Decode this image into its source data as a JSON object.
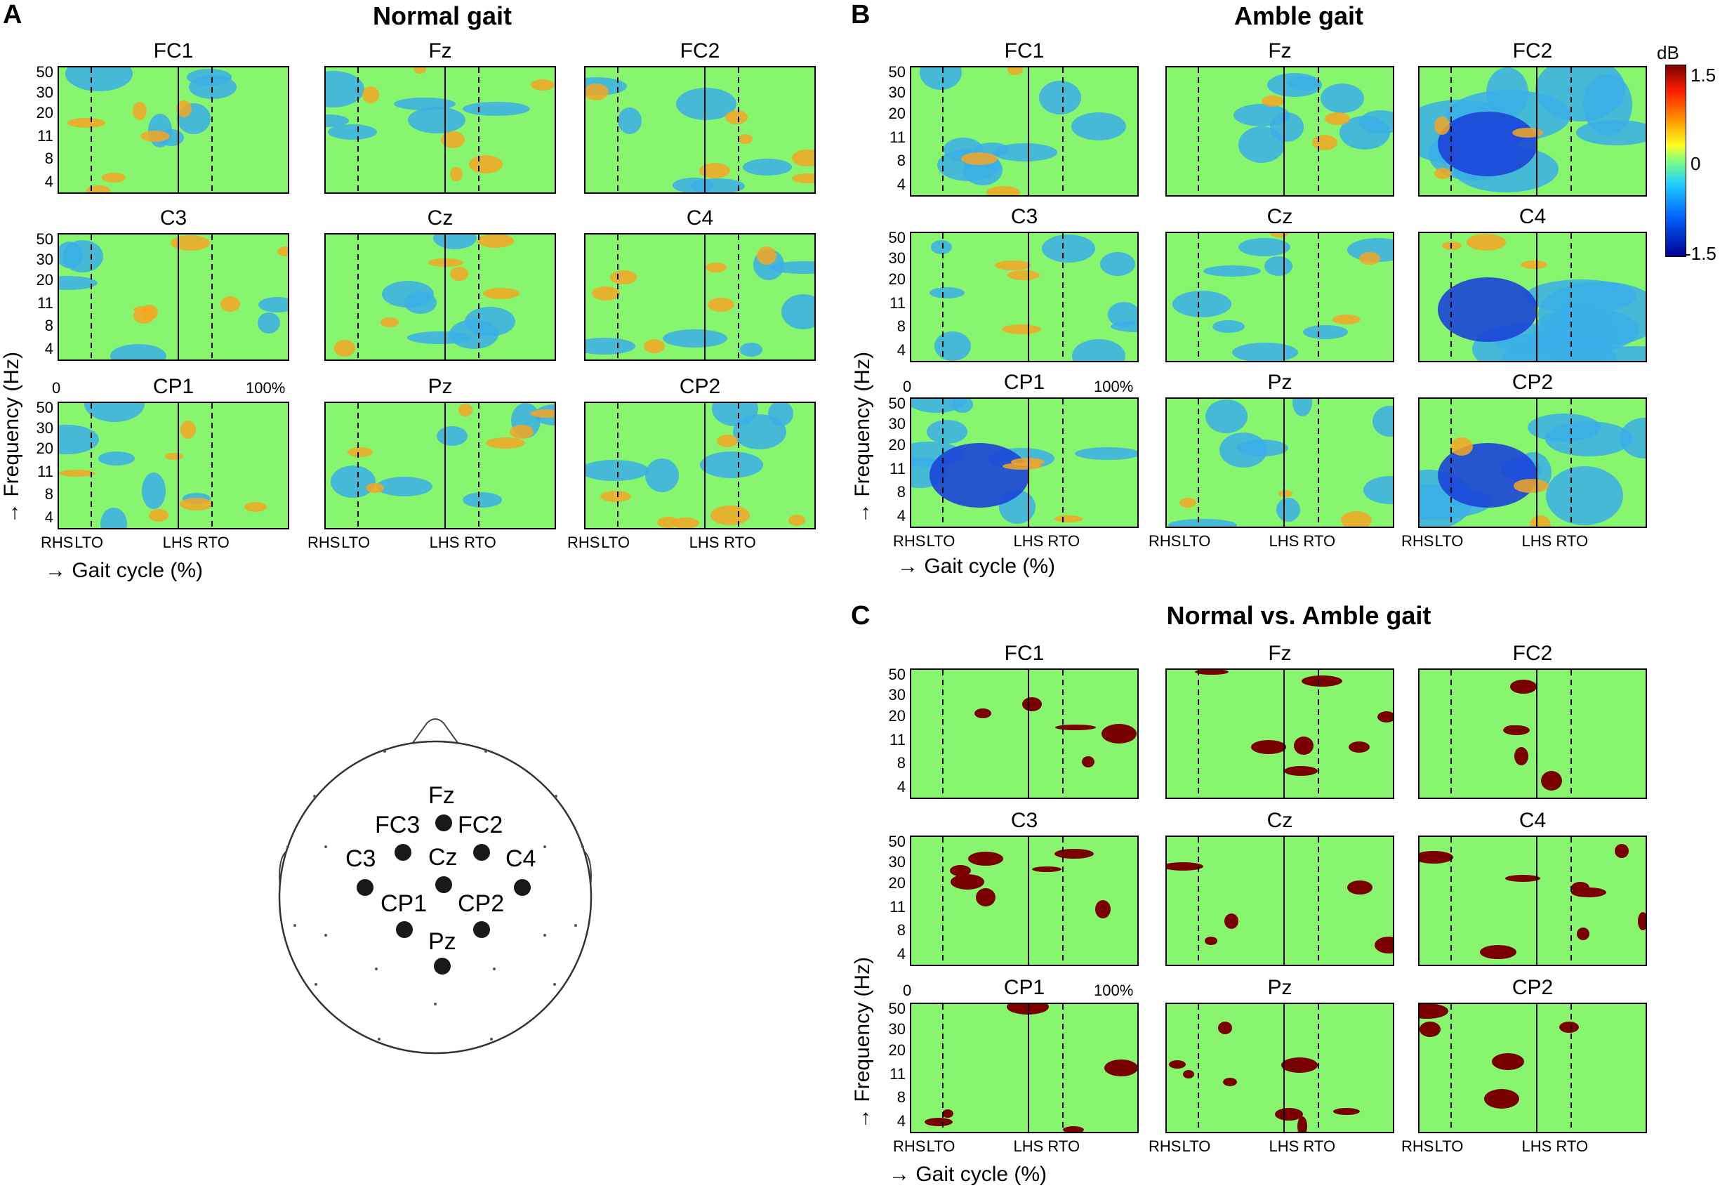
{
  "panels": {
    "A": {
      "letter": "A",
      "title": "Normal gait"
    },
    "B": {
      "letter": "B",
      "title": "Amble gait"
    },
    "C": {
      "letter": "C",
      "title": "Normal vs. Amble gait"
    }
  },
  "channels": [
    "FC1",
    "Fz",
    "FC2",
    "C3",
    "Cz",
    "C4",
    "CP1",
    "Pz",
    "CP2"
  ],
  "freq_ticks": [
    "50",
    "30",
    "20",
    "11",
    "8",
    "4"
  ],
  "gait_events": [
    "RHS",
    "LTO",
    "LHS",
    "RTO"
  ],
  "axes": {
    "y_label": "→ Frequency (Hz)",
    "x_label": "→ Gait cycle (%)",
    "x_start": "0",
    "x_end": "100%"
  },
  "colorbar": {
    "unit": "dB",
    "max": "1.5",
    "mid": "0",
    "min": "-1.5",
    "colors": [
      "#7f0000",
      "#ff2000",
      "#ffa000",
      "#ffff20",
      "#80ff80",
      "#20d0ff",
      "#0060ff",
      "#000090"
    ]
  },
  "head_map": {
    "electrodes": [
      "Fz",
      "FC3",
      "FC2",
      "C3",
      "Cz",
      "C4",
      "CP1",
      "CP2",
      "Pz"
    ]
  },
  "colors": {
    "baseline": "#88f56e",
    "positive": "#f5a623",
    "negative": "#3aaee8",
    "significant": "#7a0000"
  }
}
